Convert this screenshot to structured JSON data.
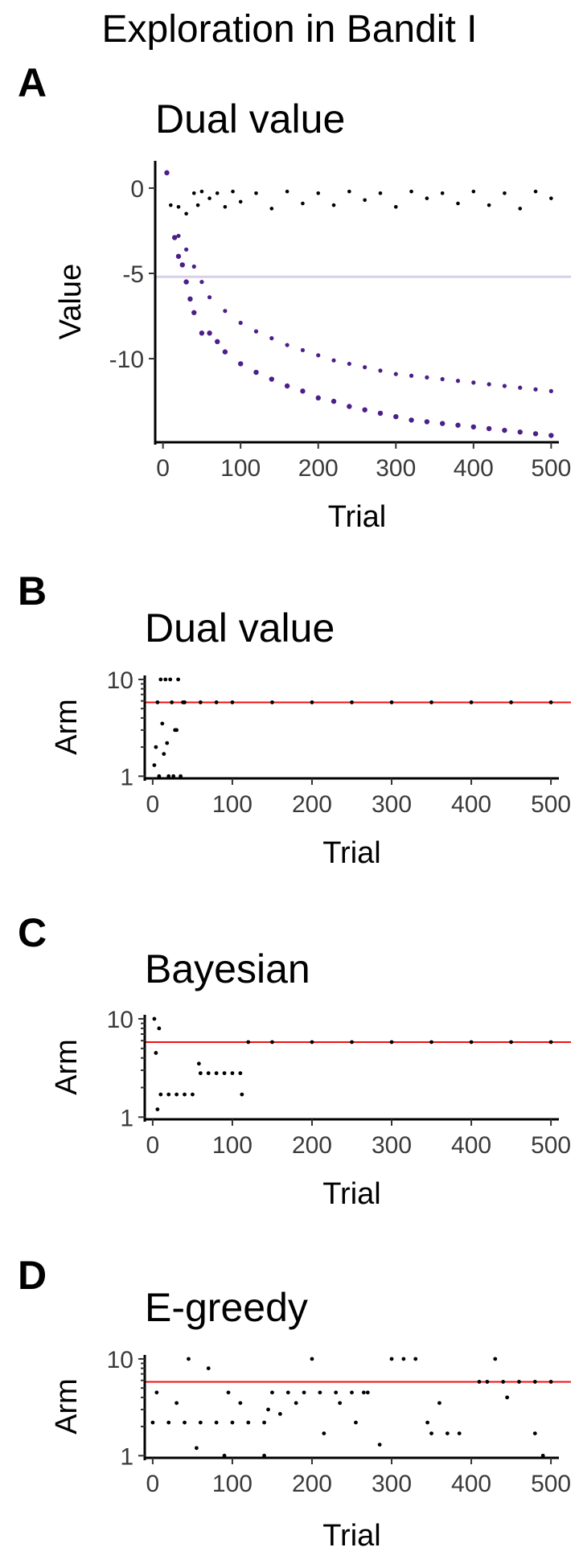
{
  "figure": {
    "title": "Exploration in Bandit I"
  },
  "chart_data": [
    {
      "panel": "A",
      "type": "scatter",
      "title": "Dual value",
      "xlabel": "Trial",
      "ylabel": "Value",
      "xlim": [
        -10,
        510
      ],
      "ylim": [
        -14.9,
        1.6
      ],
      "xticks": [
        0,
        100,
        200,
        300,
        400,
        500
      ],
      "yticks": [
        0,
        -5,
        -10
      ],
      "reference_line": {
        "y": -5.2,
        "color": "#d6d0e8"
      },
      "series": [
        {
          "color": "#000000",
          "size": 2.3,
          "x": [
            10,
            20,
            30,
            40,
            45,
            50,
            60,
            70,
            80,
            90,
            100,
            120,
            140,
            160,
            180,
            200,
            220,
            240,
            260,
            280,
            300,
            320,
            340,
            360,
            380,
            400,
            420,
            440,
            460,
            480,
            500
          ],
          "y": [
            -1.0,
            -1.1,
            -1.5,
            -0.3,
            -1.0,
            -0.2,
            -0.6,
            -0.3,
            -1.1,
            -0.2,
            -0.8,
            -0.3,
            -1.2,
            -0.2,
            -0.9,
            -0.3,
            -1.0,
            -0.2,
            -0.7,
            -0.3,
            -1.1,
            -0.2,
            -0.6,
            -0.3,
            -0.9,
            -0.2,
            -1.0,
            -0.3,
            -1.2,
            -0.2,
            -0.6
          ]
        },
        {
          "color": "#4b1f87",
          "size": 3.2,
          "x": [
            5,
            15,
            20,
            25,
            30,
            35,
            40,
            50,
            60,
            70,
            80,
            100,
            120,
            140,
            160,
            180,
            200,
            220,
            240,
            260,
            280,
            300,
            320,
            340,
            360,
            380,
            400,
            420,
            440,
            460,
            480,
            500
          ],
          "y": [
            0.9,
            -2.9,
            -4.0,
            -4.5,
            -5.5,
            -6.5,
            -7.3,
            -8.5,
            -8.5,
            -9.0,
            -9.6,
            -10.3,
            -10.8,
            -11.2,
            -11.6,
            -11.9,
            -12.3,
            -12.5,
            -12.8,
            -13.0,
            -13.2,
            -13.4,
            -13.6,
            -13.7,
            -13.8,
            -13.9,
            -14.0,
            -14.1,
            -14.2,
            -14.3,
            -14.4,
            -14.5
          ]
        },
        {
          "color": "#4b1f87",
          "size": 2.6,
          "x": [
            5,
            20,
            30,
            40,
            50,
            60,
            80,
            100,
            120,
            140,
            160,
            180,
            200,
            220,
            240,
            260,
            280,
            300,
            320,
            340,
            360,
            380,
            400,
            420,
            440,
            460,
            480,
            500
          ],
          "y": [
            0.9,
            -2.8,
            -3.6,
            -4.6,
            -5.5,
            -6.4,
            -7.2,
            -7.9,
            -8.4,
            -8.8,
            -9.2,
            -9.5,
            -9.8,
            -10.1,
            -10.3,
            -10.5,
            -10.7,
            -10.9,
            -11.0,
            -11.1,
            -11.2,
            -11.3,
            -11.4,
            -11.5,
            -11.6,
            -11.7,
            -11.8,
            -11.9
          ]
        }
      ]
    },
    {
      "panel": "B",
      "type": "scatter",
      "title": "Dual value",
      "xlabel": "Trial",
      "ylabel": "Arm",
      "log_y": true,
      "xlim": [
        -10,
        510
      ],
      "ylim": [
        0.95,
        11
      ],
      "xticks": [
        0,
        100,
        200,
        300,
        400,
        500
      ],
      "yticks": [
        10,
        1
      ],
      "reference_line": {
        "y": 5.8,
        "color": "#ee1111"
      },
      "points": {
        "x": [
          2,
          4,
          6,
          8,
          10,
          12,
          14,
          16,
          18,
          20,
          22,
          24,
          26,
          28,
          30,
          32,
          35,
          38,
          40,
          60,
          80,
          100,
          150,
          200,
          250,
          300,
          350,
          400,
          450,
          500
        ],
        "y": [
          1.3,
          2,
          5.8,
          1,
          10,
          3.5,
          1.7,
          10,
          2.2,
          1,
          10,
          5.8,
          1,
          3,
          3,
          10,
          1,
          5.8,
          5.8,
          5.8,
          5.8,
          5.8,
          5.8,
          5.8,
          5.8,
          5.8,
          5.8,
          5.8,
          5.8,
          5.8
        ]
      }
    },
    {
      "panel": "C",
      "type": "scatter",
      "title": "Bayesian",
      "xlabel": "Trial",
      "ylabel": "Arm",
      "log_y": true,
      "xlim": [
        -10,
        510
      ],
      "ylim": [
        0.95,
        11
      ],
      "xticks": [
        0,
        100,
        200,
        300,
        400,
        500
      ],
      "yticks": [
        10,
        1
      ],
      "reference_line": {
        "y": 5.8,
        "color": "#ee1111"
      },
      "points": {
        "x": [
          2,
          4,
          6,
          8,
          10,
          20,
          30,
          40,
          50,
          58,
          60,
          70,
          80,
          90,
          100,
          110,
          112,
          120,
          150,
          200,
          250,
          300,
          350,
          400,
          450,
          500
        ],
        "y": [
          10,
          4.5,
          1.2,
          8,
          1.7,
          1.7,
          1.7,
          1.7,
          1.7,
          3.5,
          2.8,
          2.8,
          2.8,
          2.8,
          2.8,
          2.8,
          1.7,
          5.8,
          5.8,
          5.8,
          5.8,
          5.8,
          5.8,
          5.8,
          5.8,
          5.8
        ]
      }
    },
    {
      "panel": "D",
      "type": "scatter",
      "title": "E-greedy",
      "xlabel": "Trial",
      "ylabel": "Arm",
      "log_y": true,
      "xlim": [
        -10,
        510
      ],
      "ylim": [
        0.95,
        11
      ],
      "xticks": [
        0,
        100,
        200,
        300,
        400,
        500
      ],
      "yticks": [
        10,
        1
      ],
      "reference_line": {
        "y": 5.8,
        "color": "#ee1111"
      },
      "points": {
        "x": [
          0,
          20,
          40,
          60,
          80,
          100,
          120,
          140,
          5,
          30,
          45,
          55,
          70,
          90,
          95,
          110,
          140,
          145,
          150,
          170,
          190,
          210,
          230,
          250,
          270,
          160,
          180,
          200,
          215,
          235,
          255,
          265,
          285,
          300,
          315,
          330,
          350,
          370,
          385,
          345,
          360,
          410,
          420,
          440,
          460,
          480,
          500,
          430,
          445,
          480,
          490
        ],
        "y": [
          2.2,
          2.2,
          2.2,
          2.2,
          2.2,
          2.2,
          2.2,
          2.2,
          4.5,
          3.5,
          10,
          1.2,
          8,
          1,
          4.5,
          3.5,
          1,
          3,
          4.5,
          4.5,
          4.5,
          4.5,
          4.5,
          4.5,
          4.5,
          2.7,
          3.5,
          10,
          1.7,
          3.5,
          2.2,
          4.5,
          1.3,
          10,
          10,
          10,
          1.7,
          1.7,
          1.7,
          2.2,
          3.5,
          5.8,
          5.8,
          5.8,
          5.8,
          5.8,
          5.8,
          10,
          4,
          1.7,
          1
        ]
      }
    }
  ]
}
